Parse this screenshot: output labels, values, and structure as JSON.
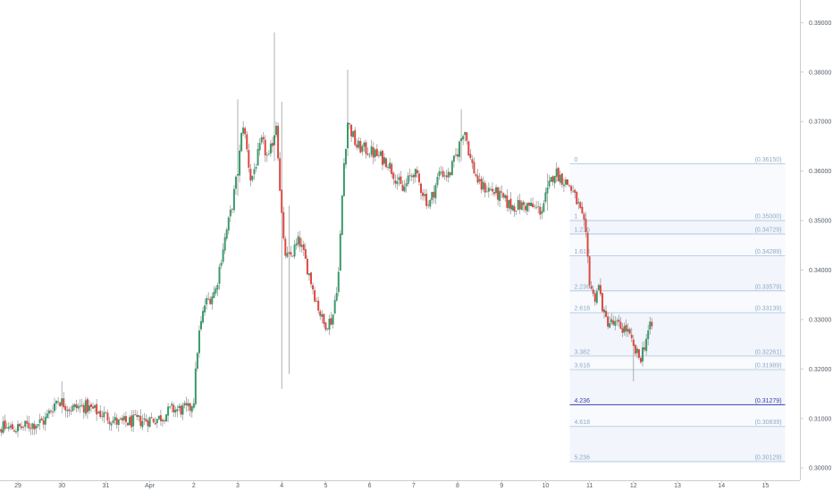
{
  "colors": {
    "background": "#ffffff",
    "grid": "#eef0f3",
    "up": "#3a9a6a",
    "down": "#e0473f",
    "wick": "#8d8f93",
    "fib_line": "#a9c3de",
    "fib_text": "#8fa9c8",
    "fib_strong": "#3a3fb0",
    "fib_zone": "#f2f5fb",
    "axis_text": "#555d66",
    "axis_line": "#c9ccd1"
  },
  "chart_data": {
    "type": "candlestick",
    "title": "",
    "xlabel": "",
    "ylabel": "",
    "y_range": [
      0.2995,
      0.3915
    ],
    "x_range": [
      -0.75,
      17.45
    ],
    "grid": false,
    "y_ticks": [
      "0.39000",
      "0.38000",
      "0.37000",
      "0.36000",
      "0.35000",
      "0.34000",
      "0.33000",
      "0.32000",
      "0.31000",
      "0.30000"
    ],
    "x_ticks": [
      {
        "label": "29",
        "x": 0
      },
      {
        "label": "30",
        "x": 1
      },
      {
        "label": "31",
        "x": 2
      },
      {
        "label": "Apr",
        "x": 3
      },
      {
        "label": "2",
        "x": 4
      },
      {
        "label": "3",
        "x": 5
      },
      {
        "label": "4",
        "x": 6
      },
      {
        "label": "5",
        "x": 7
      },
      {
        "label": "6",
        "x": 8
      },
      {
        "label": "7",
        "x": 9
      },
      {
        "label": "8",
        "x": 10
      },
      {
        "label": "9",
        "x": 11
      },
      {
        "label": "10",
        "x": 12
      },
      {
        "label": "11",
        "x": 13
      },
      {
        "label": "12",
        "x": 14
      },
      {
        "label": "13",
        "x": 15
      },
      {
        "label": "14",
        "x": 16
      },
      {
        "label": "15",
        "x": 17
      }
    ],
    "price_path": [
      [
        -0.75,
        0.3082
      ],
      [
        0.0,
        0.308
      ],
      [
        0.6,
        0.3095
      ],
      [
        0.9,
        0.314
      ],
      [
        1.2,
        0.312
      ],
      [
        1.5,
        0.3125
      ],
      [
        1.9,
        0.311
      ],
      [
        2.3,
        0.309
      ],
      [
        2.7,
        0.3095
      ],
      [
        3.2,
        0.31
      ],
      [
        3.5,
        0.3118
      ],
      [
        3.9,
        0.3118
      ],
      [
        4.0,
        0.314
      ],
      [
        4.1,
        0.326
      ],
      [
        4.25,
        0.333
      ],
      [
        4.5,
        0.336
      ],
      [
        4.65,
        0.344
      ],
      [
        4.85,
        0.352
      ],
      [
        5.0,
        0.36
      ],
      [
        5.12,
        0.37
      ],
      [
        5.3,
        0.358
      ],
      [
        5.55,
        0.366
      ],
      [
        5.7,
        0.362
      ],
      [
        5.88,
        0.37
      ],
      [
        5.95,
        0.358
      ],
      [
        6.05,
        0.344
      ],
      [
        6.15,
        0.342
      ],
      [
        6.4,
        0.346
      ],
      [
        6.6,
        0.34
      ],
      [
        6.75,
        0.335
      ],
      [
        6.95,
        0.329
      ],
      [
        7.15,
        0.33
      ],
      [
        7.3,
        0.34
      ],
      [
        7.4,
        0.36
      ],
      [
        7.5,
        0.37
      ],
      [
        7.7,
        0.365
      ],
      [
        8.0,
        0.364
      ],
      [
        8.4,
        0.362
      ],
      [
        8.75,
        0.356
      ],
      [
        9.0,
        0.36
      ],
      [
        9.35,
        0.353
      ],
      [
        9.6,
        0.36
      ],
      [
        9.8,
        0.359
      ],
      [
        10.0,
        0.364
      ],
      [
        10.15,
        0.369
      ],
      [
        10.3,
        0.362
      ],
      [
        10.5,
        0.357
      ],
      [
        10.8,
        0.356
      ],
      [
        11.2,
        0.353
      ],
      [
        11.6,
        0.353
      ],
      [
        11.9,
        0.352
      ],
      [
        12.05,
        0.356
      ],
      [
        12.2,
        0.36
      ],
      [
        12.55,
        0.357
      ],
      [
        12.75,
        0.353
      ],
      [
        12.9,
        0.348
      ],
      [
        13.0,
        0.338
      ],
      [
        13.1,
        0.334
      ],
      [
        13.2,
        0.337
      ],
      [
        13.35,
        0.33
      ],
      [
        13.55,
        0.329
      ],
      [
        13.85,
        0.328
      ],
      [
        14.0,
        0.324
      ],
      [
        14.15,
        0.322
      ],
      [
        14.35,
        0.328
      ],
      [
        14.45,
        0.3288
      ]
    ],
    "spikes": [
      {
        "x": 1.0,
        "high": 0.3175,
        "low": 0.311
      },
      {
        "x": 5.0,
        "high": 0.3745,
        "low": 0.355
      },
      {
        "x": 5.85,
        "high": 0.388,
        "low": 0.362
      },
      {
        "x": 6.0,
        "high": 0.374,
        "low": 0.316
      },
      {
        "x": 6.15,
        "high": 0.353,
        "low": 0.319
      },
      {
        "x": 7.5,
        "high": 0.3805,
        "low": 0.363
      },
      {
        "x": 10.1,
        "high": 0.3725,
        "low": 0.362
      },
      {
        "x": 12.05,
        "high": 0.3595,
        "low": 0.352
      },
      {
        "x": 14.0,
        "high": 0.325,
        "low": 0.3175
      }
    ],
    "fibonacci": {
      "x_start": 12.55,
      "x_end": 17.45,
      "levels": [
        {
          "ratio": "0",
          "price": "0.36150"
        },
        {
          "ratio": "1",
          "price": "0.35000"
        },
        {
          "ratio": "1.236",
          "price": "0.34729"
        },
        {
          "ratio": "1.618",
          "price": "0.34289"
        },
        {
          "ratio": "2.236",
          "price": "0.33579"
        },
        {
          "ratio": "2.618",
          "price": "0.33139"
        },
        {
          "ratio": "3.382",
          "price": "0.32261"
        },
        {
          "ratio": "3.618",
          "price": "0.31989"
        },
        {
          "ratio": "4.236",
          "price": "0.31279"
        },
        {
          "ratio": "4.618",
          "price": "0.30839"
        },
        {
          "ratio": "5.236",
          "price": "0.30129"
        }
      ]
    }
  }
}
